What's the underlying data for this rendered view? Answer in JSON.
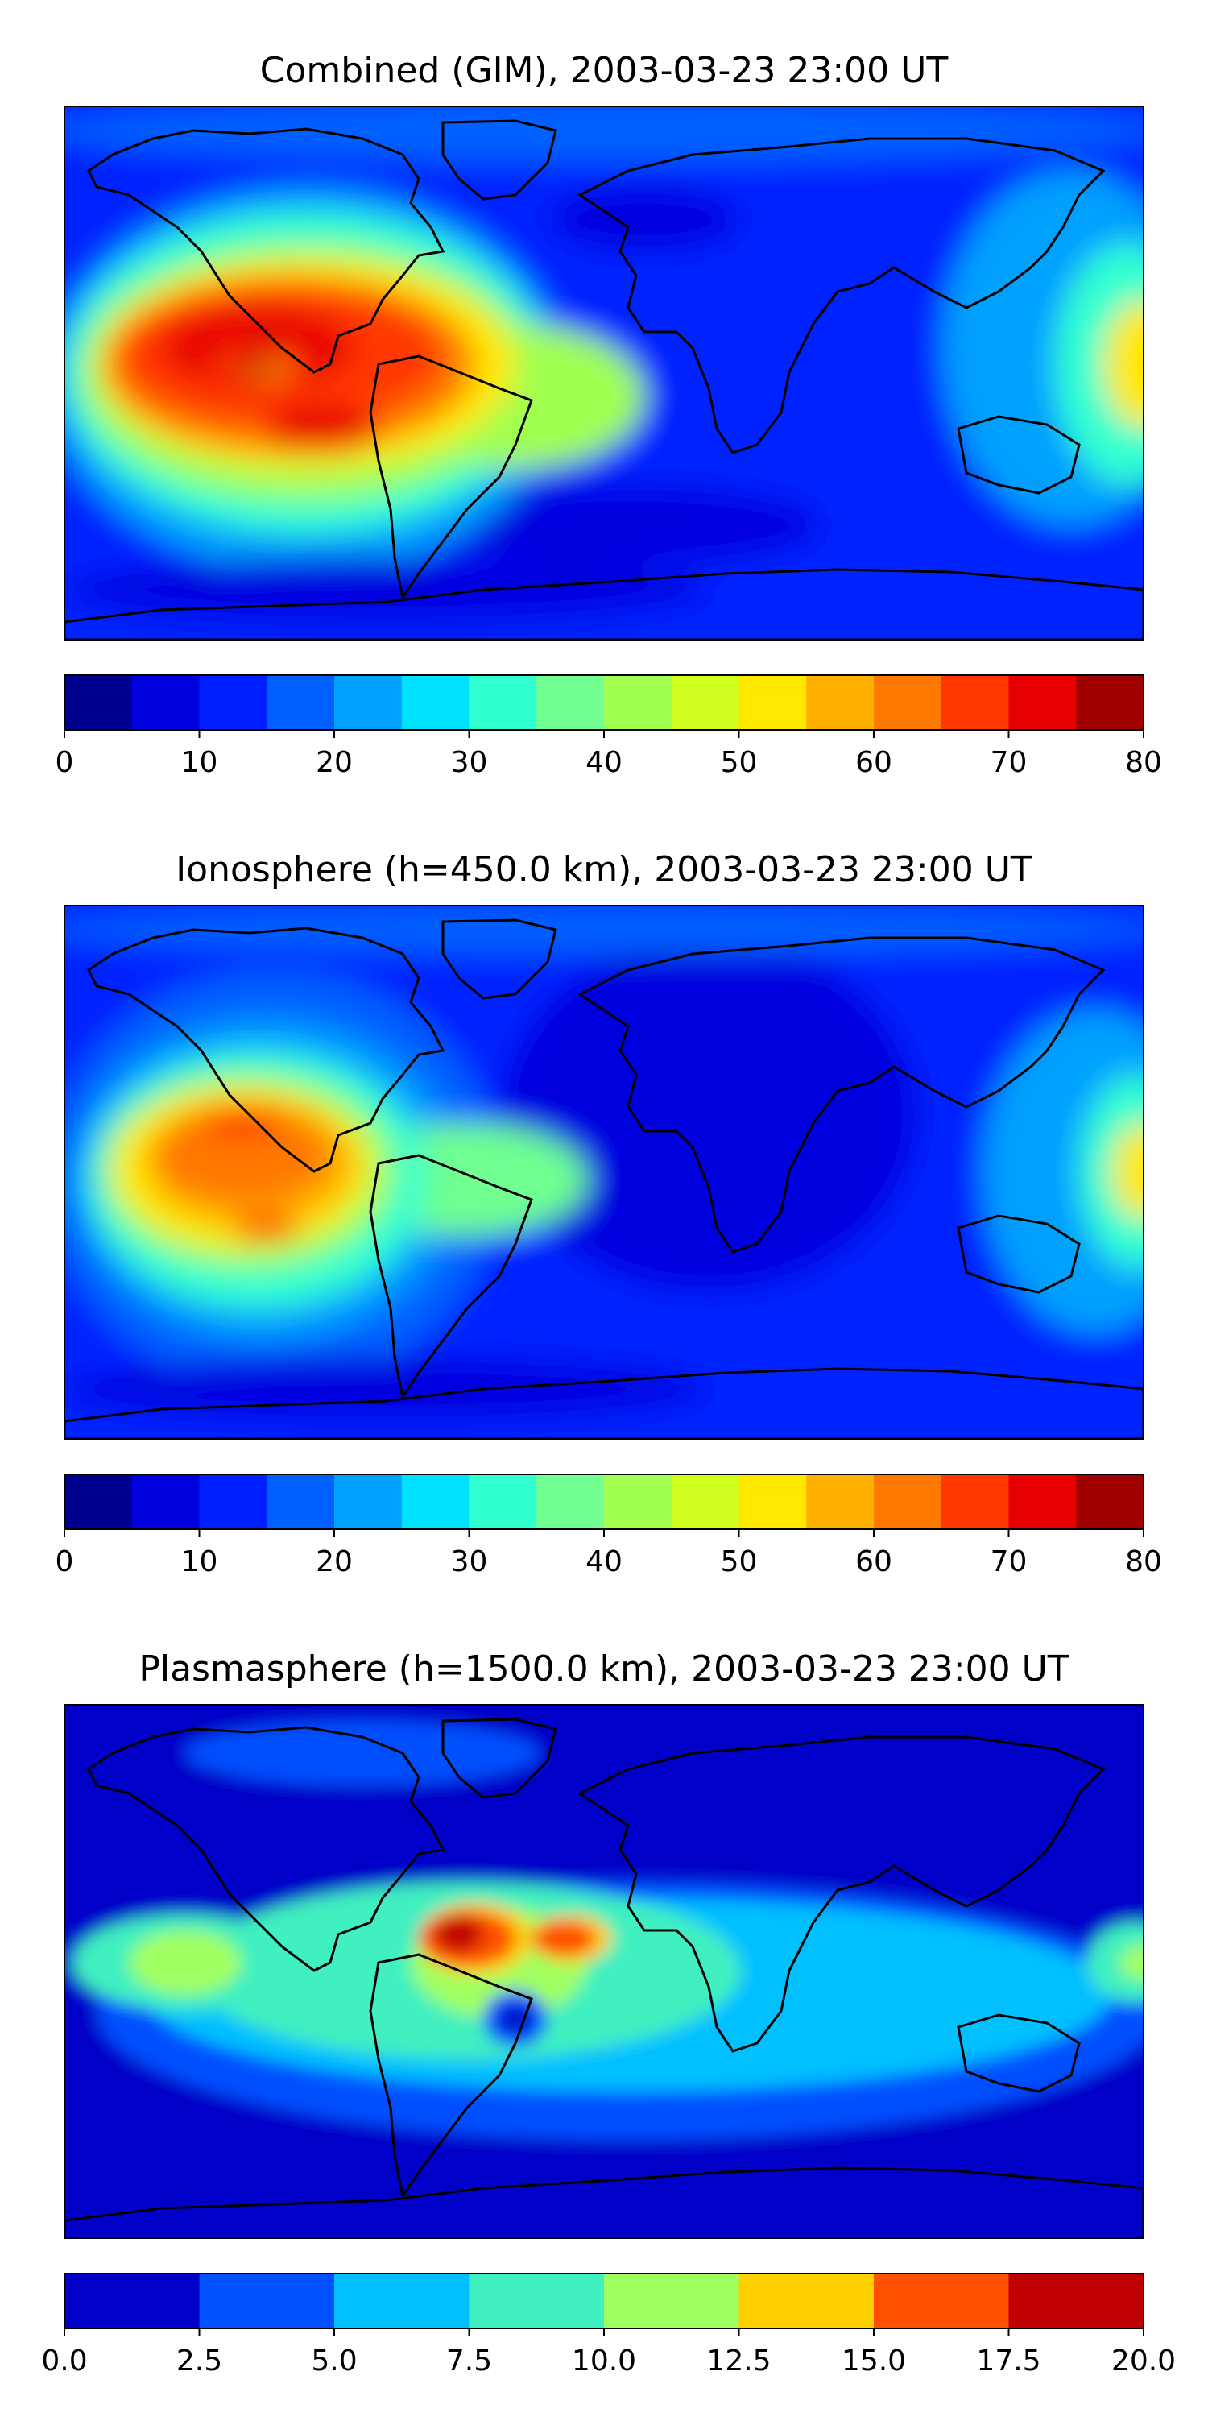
{
  "panels": [
    {
      "id": "combined",
      "title": "Combined (GIM), 2003-03-23 23:00 UT",
      "colorbar": {
        "ticks": [
          "0",
          "10",
          "20",
          "30",
          "40",
          "50",
          "60",
          "70",
          "80"
        ],
        "colors": [
          "#00008f",
          "#0000df",
          "#0020ff",
          "#0060ff",
          "#00a0ff",
          "#00e0ff",
          "#30ffd0",
          "#70ff90",
          "#a0ff50",
          "#d0ff20",
          "#ffe800",
          "#ffb000",
          "#ff7800",
          "#ff3800",
          "#e80000",
          "#a00000"
        ]
      }
    },
    {
      "id": "ionosphere",
      "title": "Ionosphere  (h=450.0 km), 2003-03-23 23:00 UT",
      "colorbar": {
        "ticks": [
          "0",
          "10",
          "20",
          "30",
          "40",
          "50",
          "60",
          "70",
          "80"
        ],
        "colors": [
          "#00008f",
          "#0000df",
          "#0020ff",
          "#0060ff",
          "#00a0ff",
          "#00e0ff",
          "#30ffd0",
          "#70ff90",
          "#a0ff50",
          "#d0ff20",
          "#ffe800",
          "#ffb000",
          "#ff7800",
          "#ff3800",
          "#e80000",
          "#a00000"
        ]
      }
    },
    {
      "id": "plasmasphere",
      "title": "Plasmasphere (h=1500.0 km), 2003-03-23 23:00 UT",
      "colorbar": {
        "ticks": [
          "0.0",
          "2.5",
          "5.0",
          "7.5",
          "10.0",
          "12.5",
          "15.0",
          "17.5",
          "20.0"
        ],
        "colors": [
          "#0000c8",
          "#0050ff",
          "#00c0ff",
          "#40f0c0",
          "#a0ff60",
          "#ffd000",
          "#ff5000",
          "#c00000"
        ]
      }
    }
  ]
}
